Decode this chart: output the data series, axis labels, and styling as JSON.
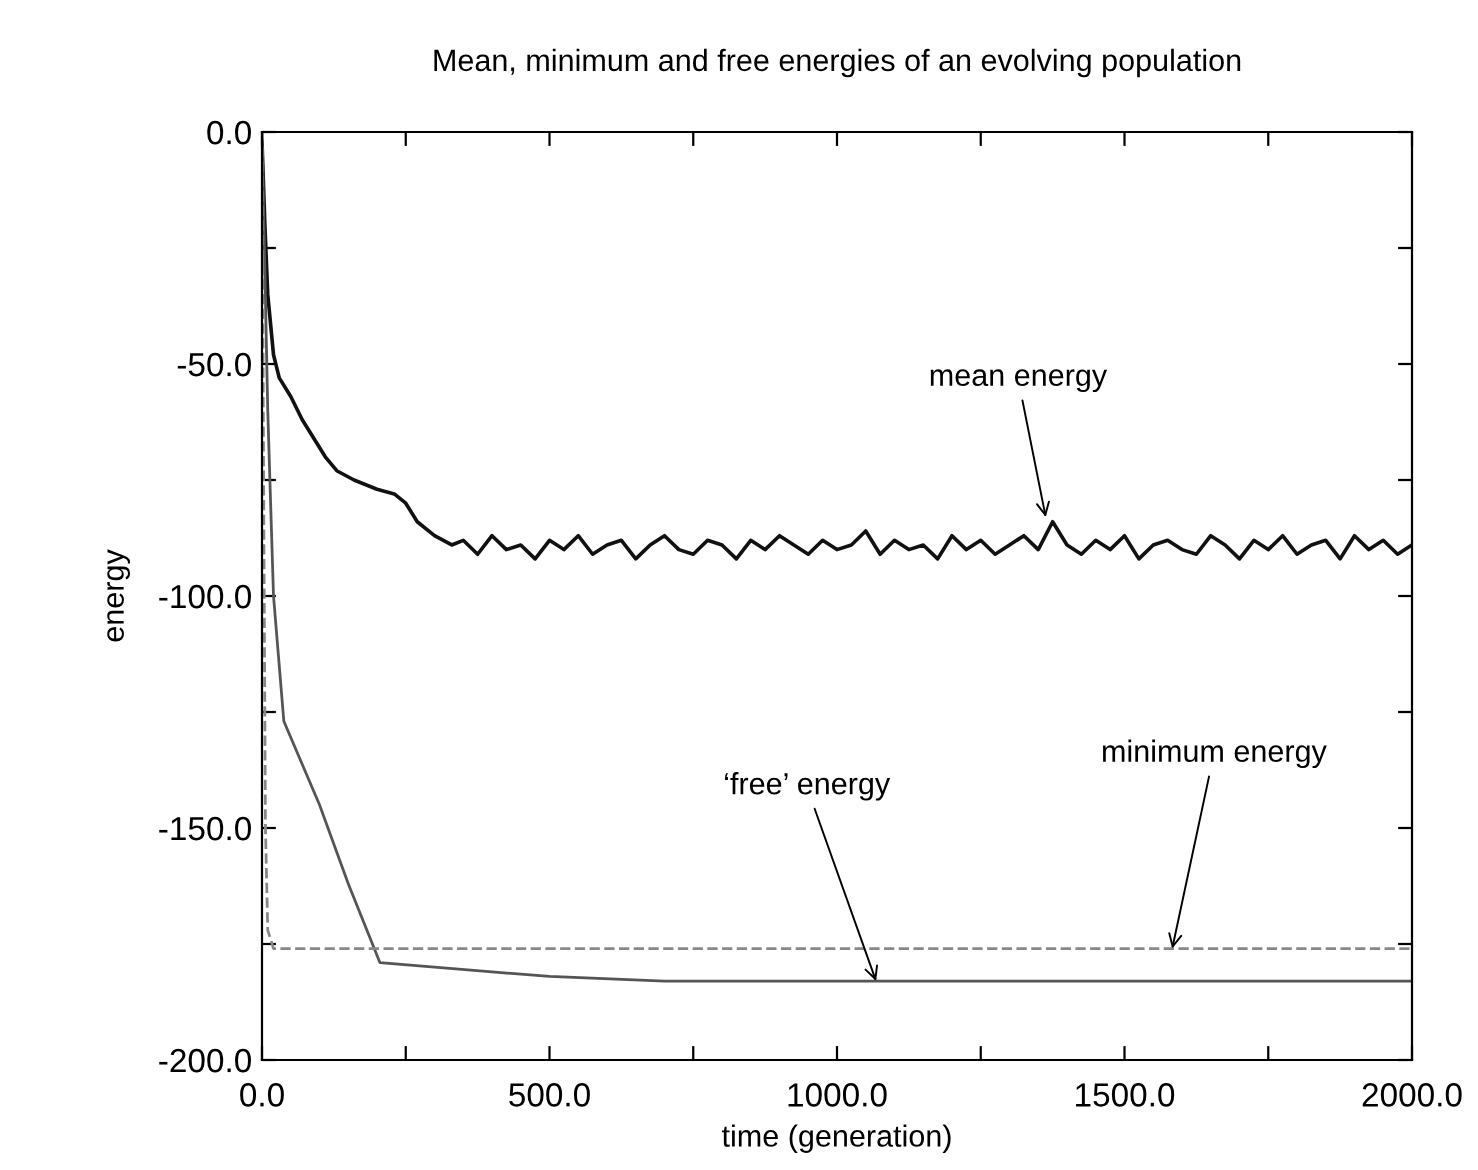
{
  "chart_data": {
    "type": "line",
    "title": "Mean, minimum and free energies of an evolving population",
    "xlabel": "time (generation)",
    "ylabel": "energy",
    "xlim": [
      0,
      2000
    ],
    "ylim": [
      -200,
      0
    ],
    "xticks": [
      {
        "value": 0,
        "label": "0.0"
      },
      {
        "value": 250,
        "label": null
      },
      {
        "value": 500,
        "label": "500.0"
      },
      {
        "value": 750,
        "label": null
      },
      {
        "value": 1000,
        "label": "1000.0"
      },
      {
        "value": 1250,
        "label": null
      },
      {
        "value": 1500,
        "label": "1500.0"
      },
      {
        "value": 1750,
        "label": null
      },
      {
        "value": 2000,
        "label": "2000.0"
      }
    ],
    "yticks": [
      {
        "value": -200,
        "label": "-200.0"
      },
      {
        "value": -175,
        "label": null
      },
      {
        "value": -150,
        "label": "-150.0"
      },
      {
        "value": -125,
        "label": null
      },
      {
        "value": -100,
        "label": "-100.0"
      },
      {
        "value": -75,
        "label": null
      },
      {
        "value": -50,
        "label": "-50.0"
      },
      {
        "value": -25,
        "label": null
      },
      {
        "value": 0,
        "label": "0.0"
      }
    ],
    "grid": false,
    "legend": false,
    "marker": "none",
    "series": [
      {
        "color": "#111111",
        "line_style": "solid",
        "x": [
          0,
          5,
          10,
          20,
          30,
          50,
          70,
          90,
          110,
          130,
          160,
          200,
          230,
          250,
          270,
          300,
          330,
          350,
          375,
          400,
          425,
          450,
          475,
          500,
          525,
          550,
          575,
          600,
          625,
          650,
          675,
          700,
          725,
          750,
          775,
          800,
          825,
          850,
          875,
          900,
          925,
          950,
          975,
          1000,
          1025,
          1050,
          1075,
          1100,
          1125,
          1150,
          1175,
          1200,
          1225,
          1250,
          1275,
          1300,
          1325,
          1350,
          1375,
          1400,
          1425,
          1450,
          1475,
          1500,
          1525,
          1550,
          1575,
          1600,
          1625,
          1650,
          1675,
          1700,
          1725,
          1750,
          1775,
          1800,
          1825,
          1850,
          1875,
          1900,
          1925,
          1950,
          1975,
          2000
        ],
        "values": [
          -2,
          -20,
          -35,
          -48,
          -53,
          -57,
          -62,
          -66,
          -70,
          -73,
          -75,
          -77,
          -78,
          -80,
          -84,
          -87,
          -89,
          -88,
          -91,
          -87,
          -90,
          -89,
          -92,
          -88,
          -90,
          -87,
          -91,
          -89,
          -88,
          -92,
          -89,
          -87,
          -90,
          -91,
          -88,
          -89,
          -92,
          -88,
          -90,
          -87,
          -89,
          -91,
          -88,
          -90,
          -89,
          -86,
          -91,
          -88,
          -90,
          -89,
          -92,
          -87,
          -90,
          -88,
          -91,
          -89,
          -87,
          -90,
          -84,
          -89,
          -91,
          -88,
          -90,
          -87,
          -92,
          -89,
          -88,
          -90,
          -91,
          -87,
          -89,
          -92,
          -88,
          -90,
          -87,
          -91,
          -89,
          -88,
          -92,
          -87,
          -90,
          -88,
          -91,
          -89
        ]
      },
      {
        "color": "#555555",
        "line_style": "solid",
        "x": [
          0,
          10,
          20,
          38,
          100,
          150,
          205,
          300,
          400,
          500,
          700,
          1000,
          1500,
          2000
        ],
        "values": [
          0,
          -60,
          -100,
          -127,
          -145,
          -162,
          -179,
          -180,
          -181,
          -182,
          -183,
          -183,
          -183,
          -183
        ]
      },
      {
        "color": "#888888",
        "line_style": "dashed",
        "x": [
          0,
          3,
          6,
          10,
          20,
          500,
          1000,
          1500,
          2000
        ],
        "values": [
          0,
          -80,
          -150,
          -172,
          -176,
          -176,
          -176,
          -176,
          -176
        ]
      }
    ],
    "annotations": [
      {
        "text": "mean energy",
        "x": 1363,
        "y": -83
      },
      {
        "text": "minimum energy",
        "x": 1583,
        "y": -176
      },
      {
        "text": "‘free’ energy",
        "x": 1068,
        "y": -183
      }
    ]
  }
}
